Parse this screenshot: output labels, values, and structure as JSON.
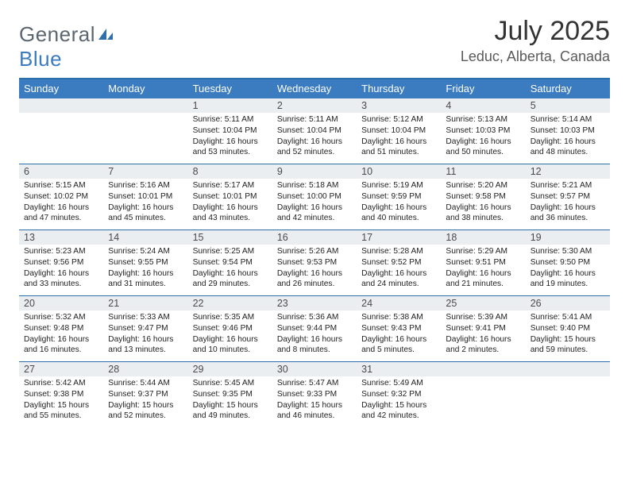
{
  "brand": {
    "text1": "General",
    "text2": "Blue",
    "text_color_gray": "#5c6670",
    "text_color_blue": "#3b7bbf",
    "icon_color": "#2e6fab"
  },
  "title": "July 2025",
  "location": "Leduc, Alberta, Canada",
  "header_bar_color": "#3b7bbf",
  "rule_color": "#2e6fab",
  "daynum_bg": "#ebeef1",
  "day_names": [
    "Sunday",
    "Monday",
    "Tuesday",
    "Wednesday",
    "Thursday",
    "Friday",
    "Saturday"
  ],
  "weeks": [
    [
      {
        "empty": true
      },
      {
        "empty": true
      },
      {
        "num": "1",
        "sunrise": "5:11 AM",
        "sunset": "10:04 PM",
        "dl_h": "16",
        "dl_m": "53"
      },
      {
        "num": "2",
        "sunrise": "5:11 AM",
        "sunset": "10:04 PM",
        "dl_h": "16",
        "dl_m": "52"
      },
      {
        "num": "3",
        "sunrise": "5:12 AM",
        "sunset": "10:04 PM",
        "dl_h": "16",
        "dl_m": "51"
      },
      {
        "num": "4",
        "sunrise": "5:13 AM",
        "sunset": "10:03 PM",
        "dl_h": "16",
        "dl_m": "50"
      },
      {
        "num": "5",
        "sunrise": "5:14 AM",
        "sunset": "10:03 PM",
        "dl_h": "16",
        "dl_m": "48"
      }
    ],
    [
      {
        "num": "6",
        "sunrise": "5:15 AM",
        "sunset": "10:02 PM",
        "dl_h": "16",
        "dl_m": "47"
      },
      {
        "num": "7",
        "sunrise": "5:16 AM",
        "sunset": "10:01 PM",
        "dl_h": "16",
        "dl_m": "45"
      },
      {
        "num": "8",
        "sunrise": "5:17 AM",
        "sunset": "10:01 PM",
        "dl_h": "16",
        "dl_m": "43"
      },
      {
        "num": "9",
        "sunrise": "5:18 AM",
        "sunset": "10:00 PM",
        "dl_h": "16",
        "dl_m": "42"
      },
      {
        "num": "10",
        "sunrise": "5:19 AM",
        "sunset": "9:59 PM",
        "dl_h": "16",
        "dl_m": "40"
      },
      {
        "num": "11",
        "sunrise": "5:20 AM",
        "sunset": "9:58 PM",
        "dl_h": "16",
        "dl_m": "38"
      },
      {
        "num": "12",
        "sunrise": "5:21 AM",
        "sunset": "9:57 PM",
        "dl_h": "16",
        "dl_m": "36"
      }
    ],
    [
      {
        "num": "13",
        "sunrise": "5:23 AM",
        "sunset": "9:56 PM",
        "dl_h": "16",
        "dl_m": "33"
      },
      {
        "num": "14",
        "sunrise": "5:24 AM",
        "sunset": "9:55 PM",
        "dl_h": "16",
        "dl_m": "31"
      },
      {
        "num": "15",
        "sunrise": "5:25 AM",
        "sunset": "9:54 PM",
        "dl_h": "16",
        "dl_m": "29"
      },
      {
        "num": "16",
        "sunrise": "5:26 AM",
        "sunset": "9:53 PM",
        "dl_h": "16",
        "dl_m": "26"
      },
      {
        "num": "17",
        "sunrise": "5:28 AM",
        "sunset": "9:52 PM",
        "dl_h": "16",
        "dl_m": "24"
      },
      {
        "num": "18",
        "sunrise": "5:29 AM",
        "sunset": "9:51 PM",
        "dl_h": "16",
        "dl_m": "21"
      },
      {
        "num": "19",
        "sunrise": "5:30 AM",
        "sunset": "9:50 PM",
        "dl_h": "16",
        "dl_m": "19"
      }
    ],
    [
      {
        "num": "20",
        "sunrise": "5:32 AM",
        "sunset": "9:48 PM",
        "dl_h": "16",
        "dl_m": "16"
      },
      {
        "num": "21",
        "sunrise": "5:33 AM",
        "sunset": "9:47 PM",
        "dl_h": "16",
        "dl_m": "13"
      },
      {
        "num": "22",
        "sunrise": "5:35 AM",
        "sunset": "9:46 PM",
        "dl_h": "16",
        "dl_m": "10"
      },
      {
        "num": "23",
        "sunrise": "5:36 AM",
        "sunset": "9:44 PM",
        "dl_h": "16",
        "dl_m": "8"
      },
      {
        "num": "24",
        "sunrise": "5:38 AM",
        "sunset": "9:43 PM",
        "dl_h": "16",
        "dl_m": "5"
      },
      {
        "num": "25",
        "sunrise": "5:39 AM",
        "sunset": "9:41 PM",
        "dl_h": "16",
        "dl_m": "2"
      },
      {
        "num": "26",
        "sunrise": "5:41 AM",
        "sunset": "9:40 PM",
        "dl_h": "15",
        "dl_m": "59"
      }
    ],
    [
      {
        "num": "27",
        "sunrise": "5:42 AM",
        "sunset": "9:38 PM",
        "dl_h": "15",
        "dl_m": "55"
      },
      {
        "num": "28",
        "sunrise": "5:44 AM",
        "sunset": "9:37 PM",
        "dl_h": "15",
        "dl_m": "52"
      },
      {
        "num": "29",
        "sunrise": "5:45 AM",
        "sunset": "9:35 PM",
        "dl_h": "15",
        "dl_m": "49"
      },
      {
        "num": "30",
        "sunrise": "5:47 AM",
        "sunset": "9:33 PM",
        "dl_h": "15",
        "dl_m": "46"
      },
      {
        "num": "31",
        "sunrise": "5:49 AM",
        "sunset": "9:32 PM",
        "dl_h": "15",
        "dl_m": "42"
      },
      {
        "empty": true
      },
      {
        "empty": true
      }
    ]
  ]
}
